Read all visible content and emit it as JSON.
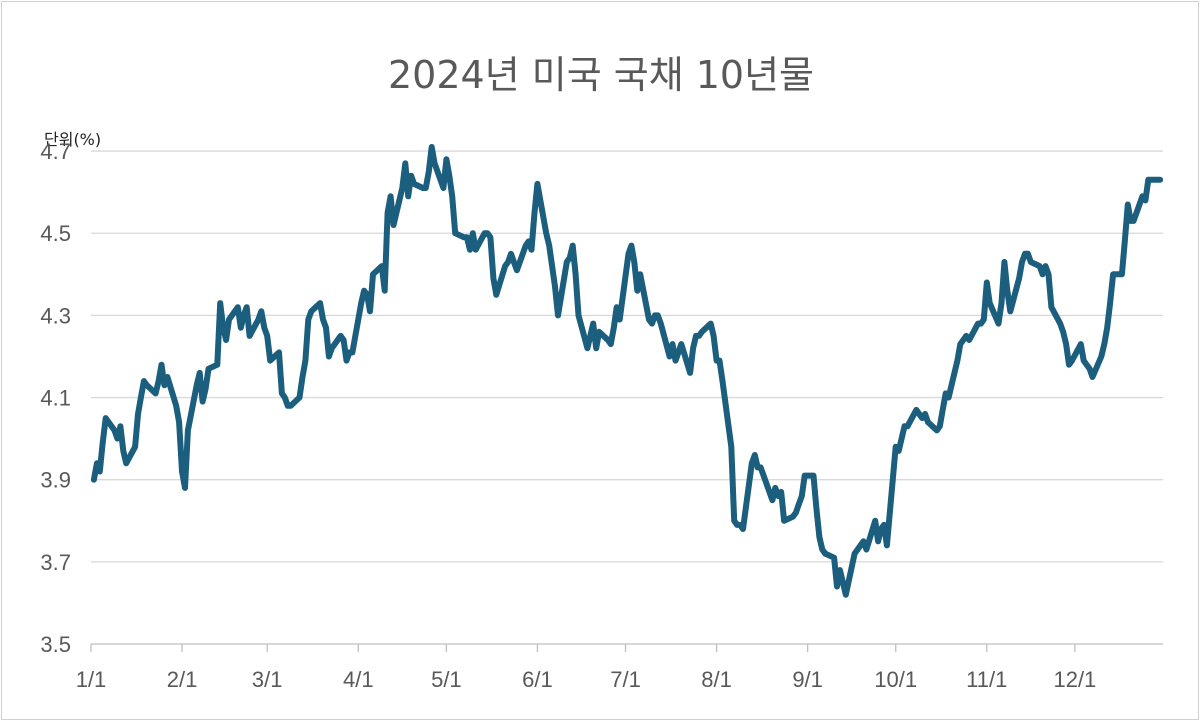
{
  "chart_data": {
    "type": "line",
    "title": "2024년 미국 국채 10년물",
    "unit_label": "단위(%)",
    "xlabel": "",
    "ylabel": "",
    "ylim": [
      3.5,
      4.8
    ],
    "yticks": [
      3.5,
      3.7,
      3.9,
      4.1,
      4.3,
      4.5,
      4.7
    ],
    "xticks": [
      {
        "day": 0,
        "label": "1/1"
      },
      {
        "day": 31,
        "label": "2/1"
      },
      {
        "day": 60,
        "label": "3/1"
      },
      {
        "day": 91,
        "label": "4/1"
      },
      {
        "day": 121,
        "label": "5/1"
      },
      {
        "day": 152,
        "label": "6/1"
      },
      {
        "day": 182,
        "label": "7/1"
      },
      {
        "day": 213,
        "label": "8/1"
      },
      {
        "day": 244,
        "label": "9/1"
      },
      {
        "day": 274,
        "label": "10/1"
      },
      {
        "day": 305,
        "label": "11/1"
      },
      {
        "day": 335,
        "label": "12/1"
      }
    ],
    "x_max": 365,
    "grid": true,
    "legend": "none",
    "line_color": "#1b5e7e",
    "series": [
      {
        "values": [
          [
            1,
            3.9
          ],
          [
            2,
            3.94
          ],
          [
            3,
            3.92
          ],
          [
            4,
            3.99
          ],
          [
            5,
            4.05
          ],
          [
            8,
            4.02
          ],
          [
            9,
            4.0
          ],
          [
            10,
            4.03
          ],
          [
            11,
            3.97
          ],
          [
            12,
            3.94
          ],
          [
            15,
            3.98
          ],
          [
            16,
            4.06
          ],
          [
            17,
            4.1
          ],
          [
            18,
            4.14
          ],
          [
            19,
            4.13
          ],
          [
            22,
            4.11
          ],
          [
            23,
            4.14
          ],
          [
            24,
            4.18
          ],
          [
            25,
            4.13
          ],
          [
            26,
            4.15
          ],
          [
            29,
            4.08
          ],
          [
            30,
            4.04
          ],
          [
            31,
            3.92
          ],
          [
            32,
            3.88
          ],
          [
            33,
            4.02
          ],
          [
            36,
            4.13
          ],
          [
            37,
            4.16
          ],
          [
            38,
            4.09
          ],
          [
            39,
            4.12
          ],
          [
            40,
            4.17
          ],
          [
            43,
            4.18
          ],
          [
            44,
            4.33
          ],
          [
            45,
            4.27
          ],
          [
            46,
            4.24
          ],
          [
            47,
            4.29
          ],
          [
            50,
            4.32
          ],
          [
            51,
            4.27
          ],
          [
            52,
            4.3
          ],
          [
            53,
            4.32
          ],
          [
            54,
            4.25
          ],
          [
            57,
            4.29
          ],
          [
            58,
            4.31
          ],
          [
            59,
            4.27
          ],
          [
            60,
            4.25
          ],
          [
            61,
            4.19
          ],
          [
            64,
            4.21
          ],
          [
            65,
            4.11
          ],
          [
            66,
            4.1
          ],
          [
            67,
            4.08
          ],
          [
            68,
            4.08
          ],
          [
            71,
            4.1
          ],
          [
            72,
            4.15
          ],
          [
            73,
            4.19
          ],
          [
            74,
            4.29
          ],
          [
            75,
            4.31
          ],
          [
            78,
            4.33
          ],
          [
            79,
            4.29
          ],
          [
            80,
            4.27
          ],
          [
            81,
            4.2
          ],
          [
            82,
            4.22
          ],
          [
            85,
            4.25
          ],
          [
            86,
            4.24
          ],
          [
            87,
            4.19
          ],
          [
            88,
            4.21
          ],
          [
            89,
            4.21
          ],
          [
            92,
            4.33
          ],
          [
            93,
            4.36
          ],
          [
            94,
            4.35
          ],
          [
            95,
            4.31
          ],
          [
            96,
            4.4
          ],
          [
            99,
            4.42
          ],
          [
            100,
            4.36
          ],
          [
            101,
            4.55
          ],
          [
            102,
            4.59
          ],
          [
            103,
            4.52
          ],
          [
            106,
            4.61
          ],
          [
            107,
            4.67
          ],
          [
            108,
            4.59
          ],
          [
            109,
            4.64
          ],
          [
            110,
            4.62
          ],
          [
            113,
            4.61
          ],
          [
            114,
            4.61
          ],
          [
            115,
            4.65
          ],
          [
            116,
            4.71
          ],
          [
            117,
            4.67
          ],
          [
            120,
            4.61
          ],
          [
            121,
            4.68
          ],
          [
            122,
            4.64
          ],
          [
            123,
            4.59
          ],
          [
            124,
            4.5
          ],
          [
            127,
            4.49
          ],
          [
            128,
            4.49
          ],
          [
            129,
            4.46
          ],
          [
            130,
            4.5
          ],
          [
            131,
            4.46
          ],
          [
            134,
            4.5
          ],
          [
            135,
            4.5
          ],
          [
            136,
            4.49
          ],
          [
            137,
            4.39
          ],
          [
            138,
            4.35
          ],
          [
            141,
            4.42
          ],
          [
            142,
            4.43
          ],
          [
            143,
            4.45
          ],
          [
            144,
            4.43
          ],
          [
            145,
            4.41
          ],
          [
            148,
            4.47
          ],
          [
            149,
            4.48
          ],
          [
            150,
            4.46
          ],
          [
            151,
            4.55
          ],
          [
            152,
            4.62
          ],
          [
            155,
            4.5
          ],
          [
            156,
            4.47
          ],
          [
            157,
            4.42
          ],
          [
            158,
            4.37
          ],
          [
            159,
            4.3
          ],
          [
            162,
            4.43
          ],
          [
            163,
            4.44
          ],
          [
            164,
            4.47
          ],
          [
            165,
            4.4
          ],
          [
            166,
            4.3
          ],
          [
            169,
            4.22
          ],
          [
            170,
            4.25
          ],
          [
            171,
            4.28
          ],
          [
            172,
            4.22
          ],
          [
            173,
            4.26
          ],
          [
            176,
            4.24
          ],
          [
            177,
            4.23
          ],
          [
            178,
            4.27
          ],
          [
            179,
            4.32
          ],
          [
            180,
            4.29
          ],
          [
            183,
            4.45
          ],
          [
            184,
            4.47
          ],
          [
            185,
            4.43
          ],
          [
            186,
            4.36
          ],
          [
            187,
            4.4
          ],
          [
            190,
            4.29
          ],
          [
            191,
            4.28
          ],
          [
            192,
            4.3
          ],
          [
            193,
            4.3
          ],
          [
            194,
            4.28
          ],
          [
            197,
            4.2
          ],
          [
            198,
            4.23
          ],
          [
            199,
            4.19
          ],
          [
            200,
            4.21
          ],
          [
            201,
            4.23
          ],
          [
            204,
            4.16
          ],
          [
            205,
            4.22
          ],
          [
            206,
            4.25
          ],
          [
            207,
            4.25
          ],
          [
            208,
            4.26
          ],
          [
            211,
            4.28
          ],
          [
            212,
            4.25
          ],
          [
            213,
            4.19
          ],
          [
            214,
            4.19
          ],
          [
            215,
            4.14
          ],
          [
            218,
            3.98
          ],
          [
            219,
            3.8
          ],
          [
            220,
            3.79
          ],
          [
            221,
            3.79
          ],
          [
            222,
            3.78
          ],
          [
            225,
            3.94
          ],
          [
            226,
            3.96
          ],
          [
            227,
            3.93
          ],
          [
            228,
            3.93
          ],
          [
            229,
            3.91
          ],
          [
            232,
            3.85
          ],
          [
            233,
            3.88
          ],
          [
            234,
            3.86
          ],
          [
            235,
            3.87
          ],
          [
            236,
            3.8
          ],
          [
            239,
            3.81
          ],
          [
            240,
            3.82
          ],
          [
            241,
            3.84
          ],
          [
            242,
            3.86
          ],
          [
            243,
            3.91
          ],
          [
            246,
            3.91
          ],
          [
            247,
            3.83
          ],
          [
            248,
            3.76
          ],
          [
            249,
            3.73
          ],
          [
            250,
            3.72
          ],
          [
            253,
            3.71
          ],
          [
            254,
            3.64
          ],
          [
            255,
            3.68
          ],
          [
            256,
            3.65
          ],
          [
            257,
            3.62
          ],
          [
            260,
            3.72
          ],
          [
            261,
            3.73
          ],
          [
            262,
            3.74
          ],
          [
            263,
            3.75
          ],
          [
            264,
            3.73
          ],
          [
            267,
            3.8
          ],
          [
            268,
            3.75
          ],
          [
            269,
            3.78
          ],
          [
            270,
            3.79
          ],
          [
            271,
            3.74
          ],
          [
            274,
            3.98
          ],
          [
            275,
            3.97
          ],
          [
            276,
            4.0
          ],
          [
            277,
            4.03
          ],
          [
            278,
            4.03
          ],
          [
            281,
            4.07
          ],
          [
            282,
            4.06
          ],
          [
            283,
            4.05
          ],
          [
            284,
            4.06
          ],
          [
            285,
            4.04
          ],
          [
            288,
            4.02
          ],
          [
            289,
            4.03
          ],
          [
            290,
            4.07
          ],
          [
            291,
            4.11
          ],
          [
            292,
            4.1
          ],
          [
            295,
            4.19
          ],
          [
            296,
            4.23
          ],
          [
            297,
            4.24
          ],
          [
            298,
            4.25
          ],
          [
            299,
            4.24
          ],
          [
            302,
            4.28
          ],
          [
            303,
            4.28
          ],
          [
            304,
            4.29
          ],
          [
            305,
            4.38
          ],
          [
            306,
            4.33
          ],
          [
            309,
            4.28
          ],
          [
            310,
            4.33
          ],
          [
            311,
            4.43
          ],
          [
            312,
            4.36
          ],
          [
            313,
            4.31
          ],
          [
            316,
            4.39
          ],
          [
            317,
            4.43
          ],
          [
            318,
            4.45
          ],
          [
            319,
            4.45
          ],
          [
            320,
            4.43
          ],
          [
            323,
            4.42
          ],
          [
            324,
            4.4
          ],
          [
            325,
            4.42
          ],
          [
            326,
            4.4
          ],
          [
            327,
            4.32
          ],
          [
            330,
            4.28
          ],
          [
            331,
            4.26
          ],
          [
            332,
            4.23
          ],
          [
            333,
            4.18
          ],
          [
            334,
            4.19
          ],
          [
            337,
            4.23
          ],
          [
            338,
            4.19
          ],
          [
            339,
            4.18
          ],
          [
            340,
            4.17
          ],
          [
            341,
            4.15
          ],
          [
            344,
            4.2
          ],
          [
            345,
            4.23
          ],
          [
            346,
            4.27
          ],
          [
            347,
            4.33
          ],
          [
            348,
            4.4
          ],
          [
            351,
            4.4
          ],
          [
            352,
            4.48
          ],
          [
            353,
            4.57
          ],
          [
            354,
            4.53
          ],
          [
            355,
            4.53
          ],
          [
            358,
            4.59
          ],
          [
            359,
            4.58
          ],
          [
            360,
            4.63
          ],
          [
            361,
            4.63
          ],
          [
            364,
            4.63
          ]
        ]
      }
    ]
  }
}
